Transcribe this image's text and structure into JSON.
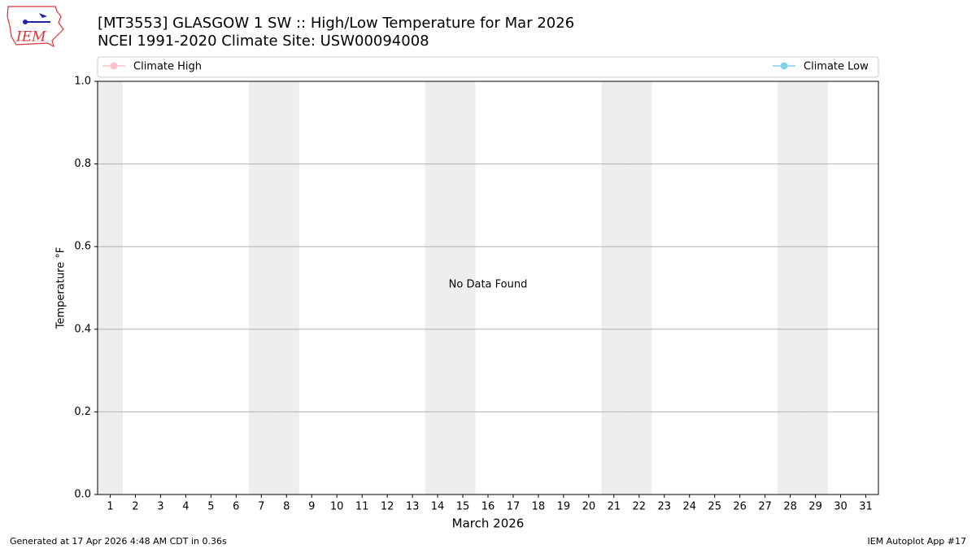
{
  "logo_text": "IEM",
  "chart_data": {
    "type": "line",
    "title": "[MT3553] GLASGOW 1 SW :: High/Low Temperature for Mar 2026",
    "subtitle": "NCEI 1991-2020 Climate Site: USW00094008",
    "xlabel": "March 2026",
    "ylabel": "Temperature °F",
    "annotation": "No Data Found",
    "xlim": [
      0.5,
      31.5
    ],
    "xticks": [
      1,
      2,
      3,
      4,
      5,
      6,
      7,
      8,
      9,
      10,
      11,
      12,
      13,
      14,
      15,
      16,
      17,
      18,
      19,
      20,
      21,
      22,
      23,
      24,
      25,
      26,
      27,
      28,
      29,
      30,
      31
    ],
    "ylim": [
      0,
      1
    ],
    "yticks": [
      {
        "value": 0,
        "label": "0.0"
      },
      {
        "value": 0.2,
        "label": "0.2"
      },
      {
        "value": 0.4,
        "label": "0.4"
      },
      {
        "value": 0.6,
        "label": "0.6"
      },
      {
        "value": 0.8,
        "label": "0.8"
      },
      {
        "value": 1,
        "label": "1.0"
      }
    ],
    "grid": true,
    "shaded_days": [
      1,
      7,
      8,
      14,
      15,
      21,
      22,
      28,
      29
    ],
    "shade_color": "#eeeeee",
    "series": [
      {
        "name": "Climate High",
        "color": "#ffc0cb",
        "values": []
      },
      {
        "name": "Climate Low",
        "color": "#87ceeb",
        "values": []
      }
    ]
  },
  "footer": {
    "left": "Generated at 17 Apr 2026 4:48 AM CDT in 0.36s",
    "right": "IEM Autoplot App #17"
  }
}
